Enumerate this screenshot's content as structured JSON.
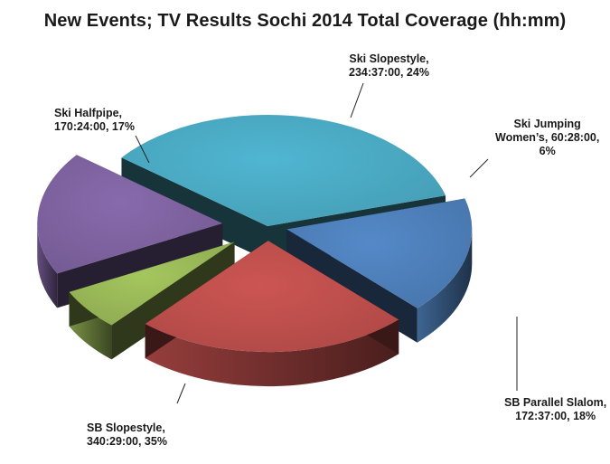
{
  "chart_data": {
    "type": "pie",
    "title": "New Events; TV Results Sochi 2014 Total Coverage (hh:mm)",
    "categories": [
      "SB Slopestyle",
      "Ski Halfpipe",
      "Ski Slopestyle",
      "Ski Jumping Women’s",
      "SB Parallel Slalom"
    ],
    "values": [
      35,
      17,
      24,
      6,
      18
    ],
    "durations": [
      "340:29:00",
      "170:24:00",
      "234:37:00",
      "60:28:00",
      "172:37:00"
    ],
    "colors": [
      "#4bacc6",
      "#4f81bd",
      "#c0504d",
      "#9bbb59",
      "#8064a2"
    ],
    "labels": [
      {
        "lines": [
          "SB Slopestyle,",
          "340:29:00, 35%"
        ]
      },
      {
        "lines": [
          "Ski Halfpipe,",
          "170:24:00, 17%"
        ]
      },
      {
        "lines": [
          "Ski Slopestyle,",
          "234:37:00, 24%"
        ]
      },
      {
        "lines": [
          "Ski Jumping",
          "Women’s, 60:28:00,",
          "6%"
        ]
      },
      {
        "lines": [
          "SB Parallel Slalom,",
          "172:37:00, 18%"
        ]
      }
    ],
    "style": "3d-exploded"
  }
}
